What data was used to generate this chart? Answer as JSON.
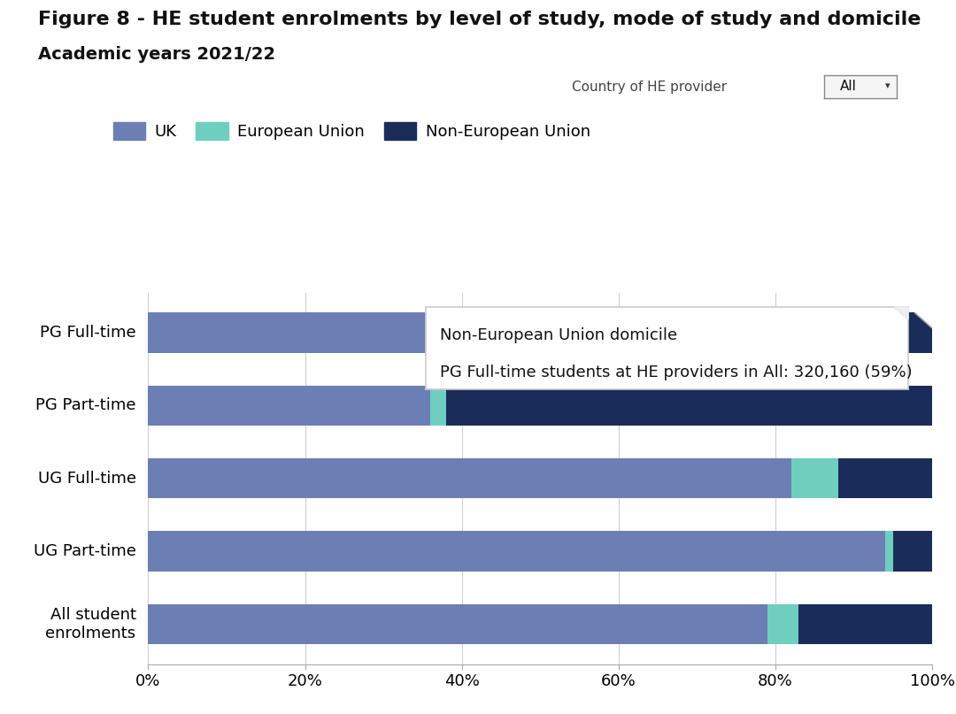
{
  "title": "Figure 8 - HE student enrolments by level of study, mode of study and domicile",
  "subtitle": "Academic years 2021/22",
  "categories": [
    "PG Full-time",
    "PG Part-time",
    "UG Full-time",
    "UG Part-time",
    "All student\nenrolments"
  ],
  "uk_values": [
    37,
    36,
    82,
    94,
    79
  ],
  "eu_values": [
    4,
    2,
    6,
    1,
    4
  ],
  "non_eu_values": [
    59,
    62,
    12,
    5,
    17
  ],
  "uk_color": "#6b7fb5",
  "eu_color": "#6ecfbf",
  "non_eu_color": "#1a2d5a",
  "bg_color": "#ffffff",
  "legend_labels": [
    "UK",
    "European Union",
    "Non-European Union"
  ],
  "country_label": "Country of HE provider",
  "country_value": "All",
  "tooltip_title": "Non-European Union domicile",
  "tooltip_body": "PG Full-time students at HE providers in All: 320,160 (59%)",
  "bar_height": 0.55,
  "xlim": [
    0,
    100
  ],
  "xticks": [
    0,
    20,
    40,
    60,
    80,
    100
  ],
  "xtick_labels": [
    "0%",
    "20%",
    "40%",
    "60%",
    "80%",
    "100%"
  ],
  "title_fontsize": 16,
  "subtitle_fontsize": 14,
  "tick_fontsize": 13,
  "legend_fontsize": 13,
  "label_fontsize": 13
}
